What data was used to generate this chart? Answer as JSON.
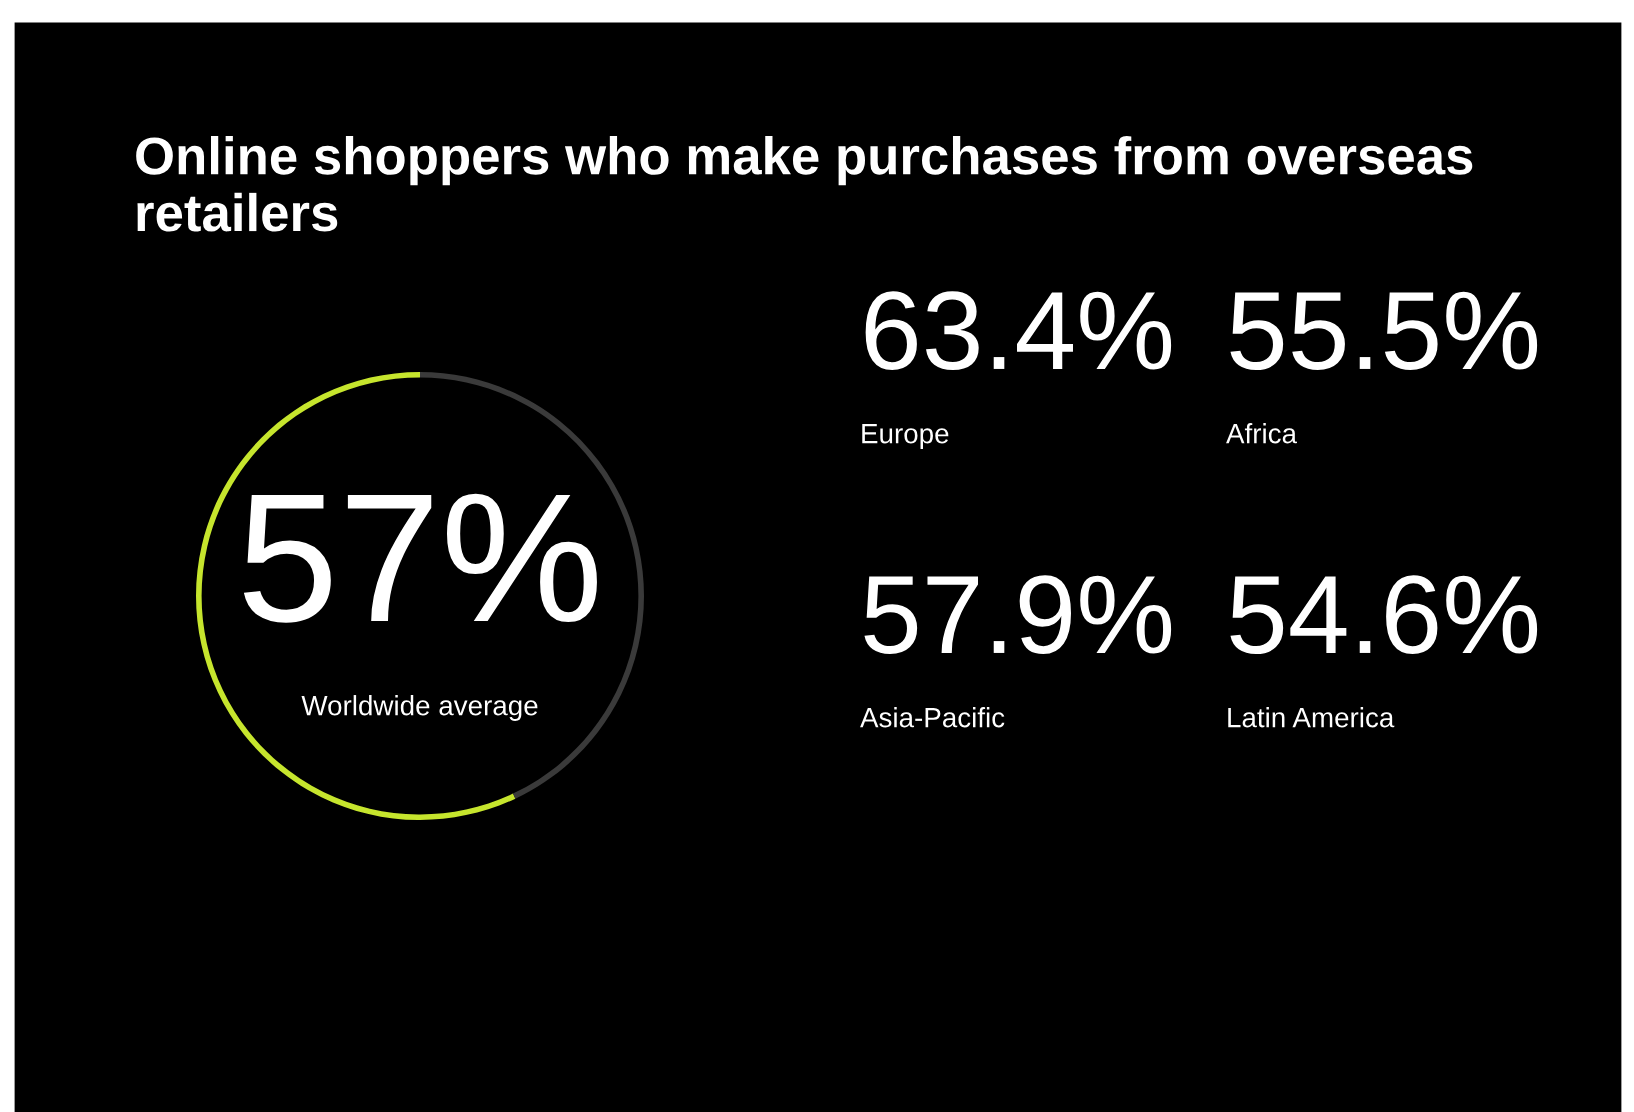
{
  "chart_data": [
    {
      "type": "donut",
      "title": "Online shoppers who make purchases from overseas retailers",
      "categories": [
        "Worldwide average",
        null
      ],
      "values": [
        57,
        43
      ],
      "value_labels": [
        "57%",
        null
      ],
      "colors": [
        "#c6e52d",
        "#3a3a3a"
      ]
    },
    {
      "type": "other",
      "annotations": [
        "63.4%",
        "Europe",
        "55.5%",
        "Africa",
        "57.9%",
        "Asia-Pacific",
        "54.6%",
        "Latin America"
      ]
    }
  ]
}
